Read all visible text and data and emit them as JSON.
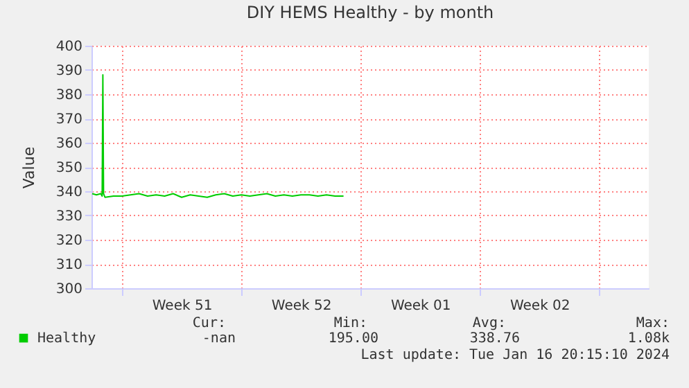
{
  "chart_data": {
    "type": "line",
    "title": "DIY HEMS Healthy - by month",
    "ylabel": "Value",
    "x": [
      "2023-12-16T06:00",
      "2023-12-16T12:00",
      "2023-12-16T18:00",
      "2023-12-16T20:00",
      "2023-12-16T21:00",
      "2023-12-16T22:00",
      "2023-12-17T00:00",
      "2023-12-17T12:00",
      "2023-12-18T00:00",
      "2023-12-18T12:00",
      "2023-12-19T00:00",
      "2023-12-19T12:00",
      "2023-12-20T00:00",
      "2023-12-20T12:00",
      "2023-12-21T00:00",
      "2023-12-21T12:00",
      "2023-12-22T00:00",
      "2023-12-22T12:00",
      "2023-12-23T00:00",
      "2023-12-23T12:00",
      "2023-12-24T00:00",
      "2023-12-24T12:00",
      "2023-12-25T00:00",
      "2023-12-25T12:00",
      "2023-12-26T00:00",
      "2023-12-26T12:00",
      "2023-12-27T00:00",
      "2023-12-27T12:00",
      "2023-12-28T00:00",
      "2023-12-28T12:00",
      "2023-12-29T00:00",
      "2023-12-29T12:00",
      "2023-12-30T00:00",
      "2023-12-30T12:00",
      "2023-12-31T00:00"
    ],
    "series": [
      {
        "name": "Healthy",
        "color": "#00cc00",
        "values": [
          339,
          338.5,
          339,
          338,
          388,
          339,
          337.5,
          338,
          338,
          338.5,
          339,
          338,
          338.5,
          338,
          339,
          337.5,
          338.5,
          338,
          337.5,
          338.5,
          339,
          338,
          338.5,
          338,
          338.5,
          339,
          338,
          338.5,
          338,
          338.5,
          338.5,
          338,
          338.5,
          338,
          338
        ]
      }
    ],
    "xlim": [
      "2023-12-16T05:00",
      "2024-01-17T22:00"
    ],
    "xticks": [
      {
        "value": "2023-12-18T00:00",
        "label": null
      },
      {
        "value": "2023-12-21T12:00",
        "label": "Week 51"
      },
      {
        "value": "2023-12-25T00:00",
        "label": null
      },
      {
        "value": "2023-12-28T12:00",
        "label": "Week 52"
      },
      {
        "value": "2024-01-01T00:00",
        "label": null
      },
      {
        "value": "2024-01-04T12:00",
        "label": "Week 01"
      },
      {
        "value": "2024-01-08T00:00",
        "label": null
      },
      {
        "value": "2024-01-11T12:00",
        "label": "Week 02"
      },
      {
        "value": "2024-01-15T00:00",
        "label": null
      }
    ],
    "ylim": [
      300,
      400
    ],
    "yticks": [
      300,
      310,
      320,
      330,
      340,
      350,
      360,
      370,
      380,
      390,
      400
    ],
    "grid": true,
    "legend": "bottom",
    "marker": "none",
    "line_style": "solid",
    "annotations": [
      "Cur:",
      "Min:",
      "Avg:",
      "Max:",
      "-nan",
      "195.00",
      "338.76",
      "1.08k",
      "Last update: Tue Jan 16 20:15:10 2024"
    ]
  }
}
